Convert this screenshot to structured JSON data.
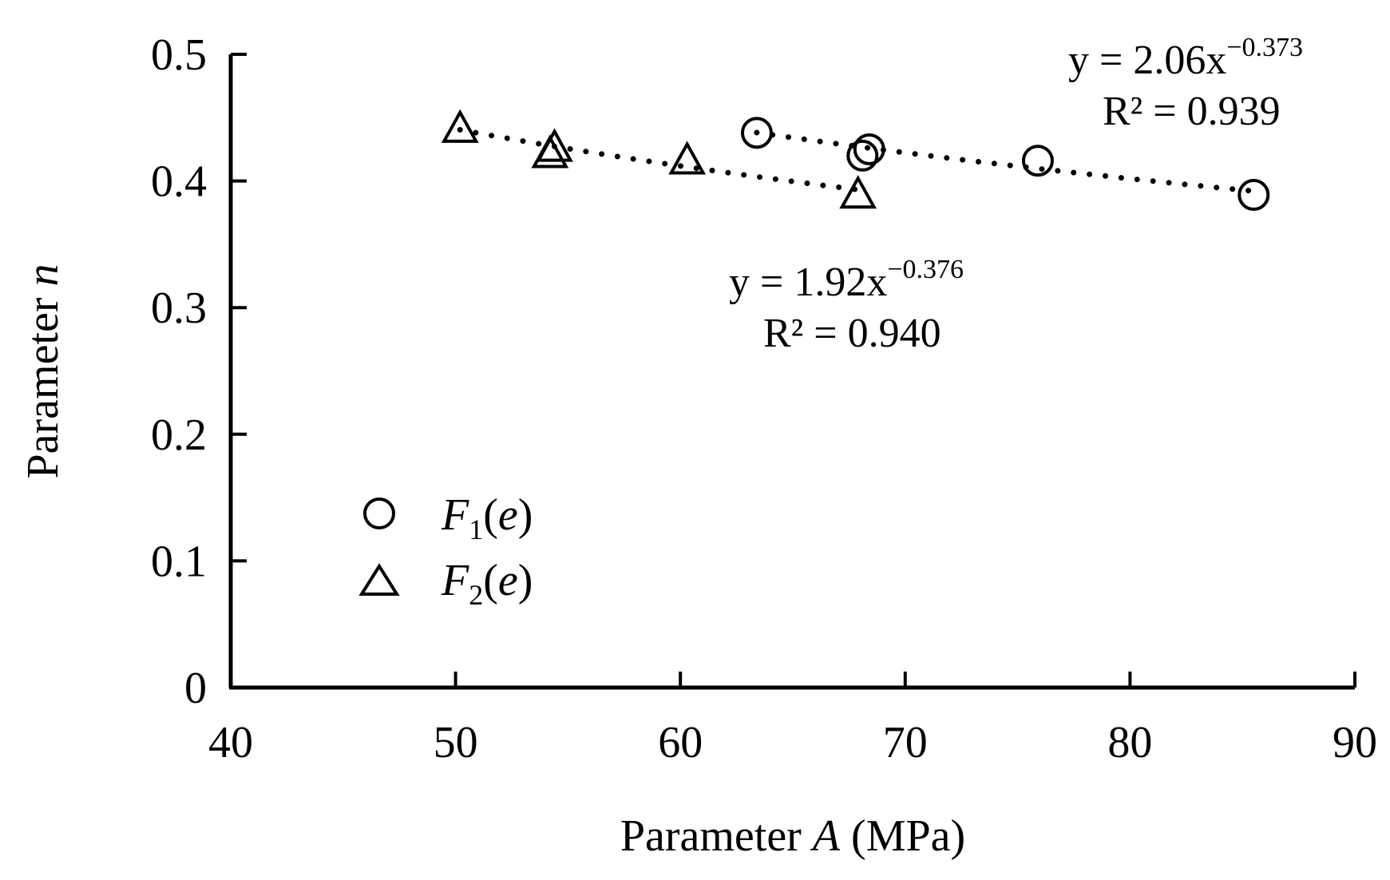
{
  "chart_data": {
    "type": "scatter",
    "xlabel": {
      "main": "Parameter ",
      "italic": "A",
      "unit": " (MPa)"
    },
    "ylabel": {
      "main": "Parameter ",
      "italic": "n"
    },
    "xlim": [
      40,
      90
    ],
    "ylim": [
      0,
      0.5
    ],
    "xticks": [
      "40",
      "50",
      "60",
      "70",
      "80",
      "90"
    ],
    "yticks": [
      "0",
      "0.1",
      "0.2",
      "0.3",
      "0.4",
      "0.5"
    ],
    "grid": false,
    "legend_position": "bottom-left",
    "series": [
      {
        "name": "F1(e)",
        "legend": {
          "italic": "F",
          "sub": "1",
          "paren_open": "(",
          "arg": "e",
          "paren_close": ")"
        },
        "marker": "circle",
        "x": [
          63.4,
          68.1,
          68.4,
          75.9,
          85.5
        ],
        "y": [
          0.438,
          0.42,
          0.425,
          0.416,
          0.389
        ],
        "fit": {
          "a": 2.06,
          "b": -0.373,
          "x_range": [
            63.4,
            85.5
          ],
          "equation": {
            "prefix": "y = 2.06x",
            "exponent": "−0.373"
          },
          "r2": "R² = 0.939"
        }
      },
      {
        "name": "F2(e)",
        "legend": {
          "italic": "F",
          "sub": "2",
          "paren_open": "(",
          "arg": "e",
          "paren_close": ")"
        },
        "marker": "triangle",
        "x": [
          50.2,
          54.2,
          54.4,
          60.3,
          67.9
        ],
        "y": [
          0.44,
          0.42,
          0.425,
          0.415,
          0.388
        ],
        "fit": {
          "a": 1.92,
          "b": -0.376,
          "x_range": [
            50.2,
            67.9
          ],
          "equation": {
            "prefix": "y = 1.92x",
            "exponent": "−0.376"
          },
          "r2": "R² = 0.940"
        }
      }
    ]
  }
}
